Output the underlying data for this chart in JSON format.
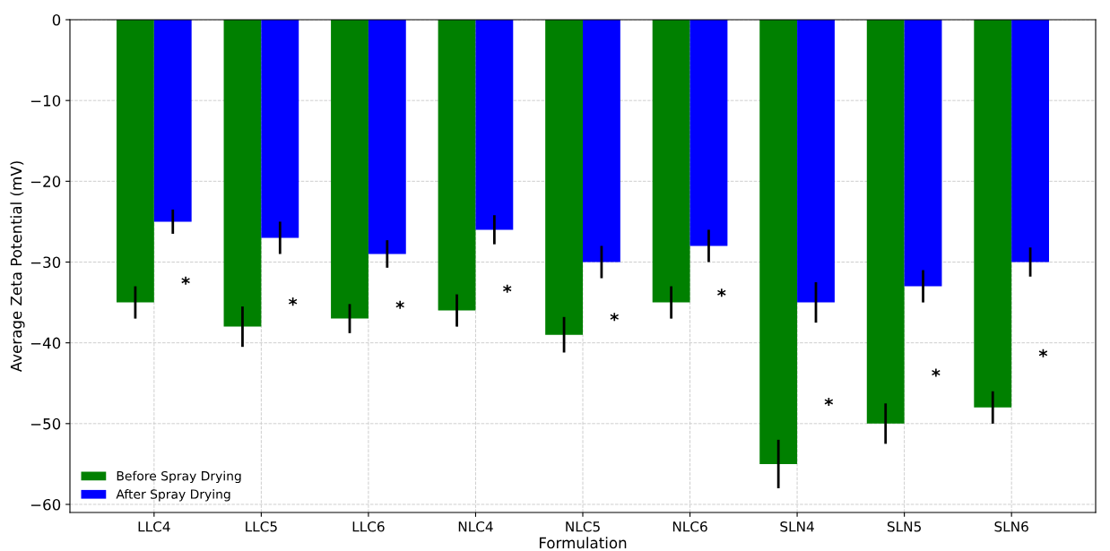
{
  "chart_data": {
    "type": "bar",
    "xlabel": "Formulation",
    "ylabel": "Average Zeta Potential (mV)",
    "categories": [
      "LLC4",
      "LLC5",
      "LLC6",
      "NLC4",
      "NLC5",
      "NLC6",
      "SLN4",
      "SLN5",
      "SLN6"
    ],
    "series": [
      {
        "name": "Before Spray Drying",
        "color": "#008000",
        "values": [
          -35,
          -38,
          -37,
          -36,
          -39,
          -35,
          -55,
          -50,
          -48
        ],
        "errors": [
          2,
          2.5,
          1.8,
          2,
          2.2,
          2,
          3,
          2.5,
          2
        ]
      },
      {
        "name": "After Spray Drying",
        "color": "#0000ff",
        "values": [
          -25,
          -27,
          -29,
          -26,
          -30,
          -28,
          -35,
          -33,
          -30
        ],
        "errors": [
          1.5,
          2,
          1.7,
          1.8,
          2,
          2,
          2.5,
          2,
          1.8
        ]
      }
    ],
    "annotations": [
      {
        "text": "*",
        "x": "LLC4",
        "y": -32.8
      },
      {
        "text": "*",
        "x": "LLC5",
        "y": -35.4
      },
      {
        "text": "*",
        "x": "LLC6",
        "y": -35.8
      },
      {
        "text": "*",
        "x": "NLC4",
        "y": -33.8
      },
      {
        "text": "*",
        "x": "NLC5",
        "y": -37.3
      },
      {
        "text": "*",
        "x": "NLC6",
        "y": -34.3
      },
      {
        "text": "*",
        "x": "SLN4",
        "y": -47.8
      },
      {
        "text": "*",
        "x": "SLN5",
        "y": -44.2
      },
      {
        "text": "*",
        "x": "SLN6",
        "y": -41.8
      }
    ],
    "ylim": [
      -61,
      0
    ],
    "yticks": [
      {
        "value": -60,
        "label": "−60"
      },
      {
        "value": -50,
        "label": "−50"
      },
      {
        "value": -40,
        "label": "−40"
      },
      {
        "value": -30,
        "label": "−30"
      },
      {
        "value": -20,
        "label": "−20"
      },
      {
        "value": -10,
        "label": "−10"
      },
      0
    ],
    "grid": true,
    "legend": "bottom left"
  }
}
